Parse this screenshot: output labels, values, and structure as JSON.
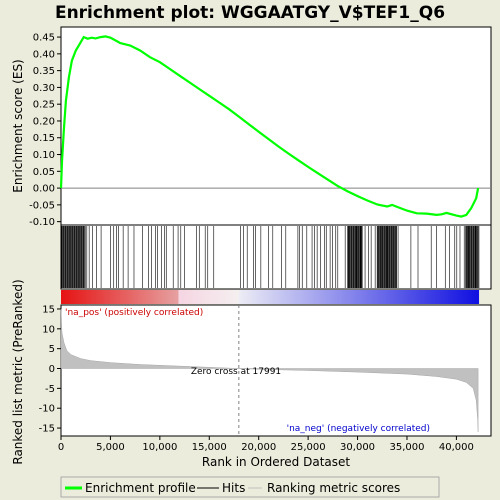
{
  "chart_data": {
    "type": "line",
    "title": "Enrichment plot: WGGAATGY_V$TEF1_Q6",
    "xlabel": "Rank in Ordered Dataset",
    "ylabel_top": "Enrichment score (ES)",
    "ylabel_bottom": "Ranked list metric (PreRanked)",
    "xlim": [
      0,
      43500
    ],
    "x_ticks": [
      0,
      5000,
      10000,
      15000,
      20000,
      25000,
      30000,
      35000,
      40000
    ],
    "x_tick_labels": [
      "0",
      "5,000",
      "10,000",
      "15,000",
      "20,000",
      "25,000",
      "30,000",
      "35,000",
      "40,000"
    ],
    "es_ylim": [
      -0.11,
      0.48
    ],
    "es_ticks": [
      -0.1,
      -0.05,
      0.0,
      0.05,
      0.1,
      0.15,
      0.2,
      0.25,
      0.3,
      0.35,
      0.4,
      0.45
    ],
    "es_tick_labels": [
      "-0.10",
      "-0.05",
      "0.00",
      "0.05",
      "0.10",
      "0.15",
      "0.20",
      "0.25",
      "0.30",
      "0.35",
      "0.40",
      "0.45"
    ],
    "metric_ylim": [
      -17,
      16
    ],
    "metric_ticks": [
      -15,
      -10,
      -5,
      0,
      5,
      10,
      15
    ],
    "metric_tick_labels": [
      "-15",
      "-10",
      "-5",
      "0",
      "5",
      "10",
      "15"
    ],
    "enrichment_profile": {
      "x": [
        0,
        100,
        300,
        500,
        800,
        1100,
        1500,
        1900,
        2300,
        2700,
        3100,
        3500,
        4000,
        4500,
        5000,
        5500,
        6000,
        7000,
        8000,
        9000,
        10000,
        11000,
        12000,
        13000,
        14000,
        15000,
        16000,
        17000,
        18000,
        19000,
        20000,
        21000,
        22000,
        23000,
        24000,
        25000,
        26000,
        27000,
        28000,
        29000,
        30000,
        31000,
        32000,
        33000,
        33500,
        34000,
        35000,
        36000,
        37000,
        38000,
        38500,
        39000,
        40000,
        40500,
        41000,
        41500,
        42000,
        42200
      ],
      "y": [
        0.0,
        0.08,
        0.18,
        0.26,
        0.33,
        0.38,
        0.41,
        0.43,
        0.45,
        0.445,
        0.448,
        0.446,
        0.45,
        0.452,
        0.448,
        0.44,
        0.432,
        0.425,
        0.41,
        0.39,
        0.375,
        0.355,
        0.335,
        0.315,
        0.295,
        0.275,
        0.255,
        0.235,
        0.213,
        0.19,
        0.168,
        0.146,
        0.124,
        0.103,
        0.083,
        0.063,
        0.044,
        0.025,
        0.006,
        -0.01,
        -0.024,
        -0.037,
        -0.049,
        -0.055,
        -0.05,
        -0.056,
        -0.067,
        -0.075,
        -0.076,
        -0.08,
        -0.078,
        -0.074,
        -0.082,
        -0.085,
        -0.08,
        -0.06,
        -0.03,
        0.0
      ]
    },
    "hits": {
      "dense_ranges": [
        [
          0,
          2500
        ],
        [
          29000,
          30500
        ],
        [
          32000,
          34000
        ],
        [
          41000,
          42200
        ]
      ],
      "sparse_step": 300
    },
    "ranked_metric": {
      "x": [
        0,
        100,
        300,
        600,
        1000,
        2000,
        3000,
        5000,
        8000,
        12000,
        15000,
        17991,
        20000,
        25000,
        30000,
        35000,
        38000,
        40000,
        41000,
        41700,
        42000,
        42150,
        42200
      ],
      "y": [
        15,
        9,
        6.5,
        4.5,
        3.5,
        2.5,
        2.0,
        1.5,
        1.0,
        0.6,
        0.3,
        0.0,
        -0.2,
        -0.5,
        -0.9,
        -1.4,
        -2.0,
        -2.7,
        -3.5,
        -5,
        -8,
        -13,
        -16
      ]
    },
    "zero_cross_rank": 17991,
    "annotations": {
      "zero_cross": "Zero cross at 17991",
      "pos": "'na_pos' (positively correlated)",
      "neg": "'na_neg' (negatively correlated)"
    },
    "legend": {
      "placement": "bottom",
      "items": [
        "Enrichment profile",
        "Hits",
        "Ranking metric scores"
      ]
    },
    "colors": {
      "enrichment": "#00ff00",
      "hits": "#000000",
      "metric": "#c0c0c0",
      "pos_text": "#cc0000",
      "neg_text": "#0000cc",
      "zero_line": "#808080",
      "background": "#ececdc",
      "plot_bg": "#ffffff"
    }
  }
}
